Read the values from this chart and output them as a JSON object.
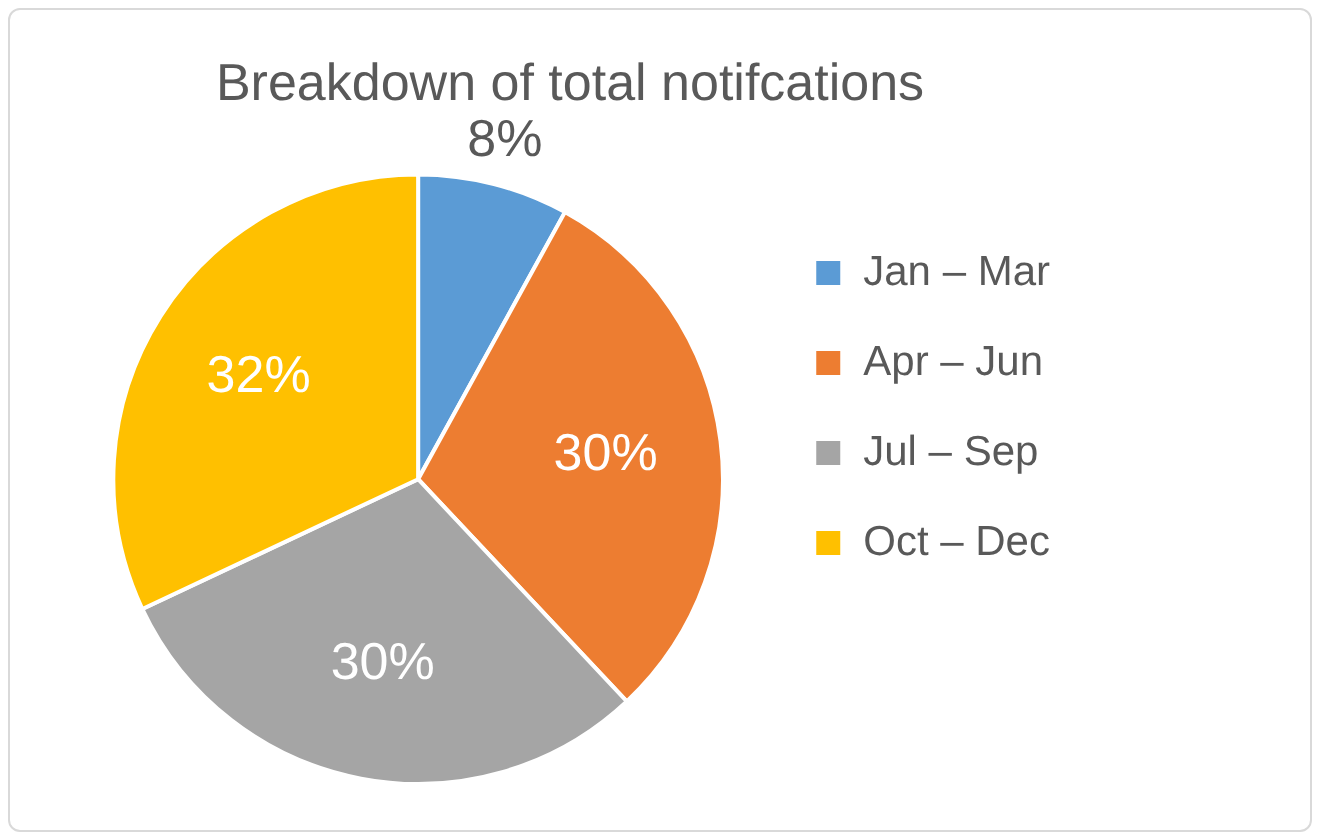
{
  "chart_data": {
    "type": "pie",
    "title": "Breakdown of total notifcations",
    "categories": [
      "Jan – Mar",
      "Apr – Jun",
      "Jul – Sep",
      "Oct – Dec"
    ],
    "values": [
      8,
      30,
      30,
      32
    ],
    "colors": [
      "#5b9bd5",
      "#ed7d31",
      "#a5a5a5",
      "#ffc000"
    ],
    "value_labels": [
      "8%",
      "30%",
      "30%",
      "32%"
    ],
    "legend": "right"
  }
}
